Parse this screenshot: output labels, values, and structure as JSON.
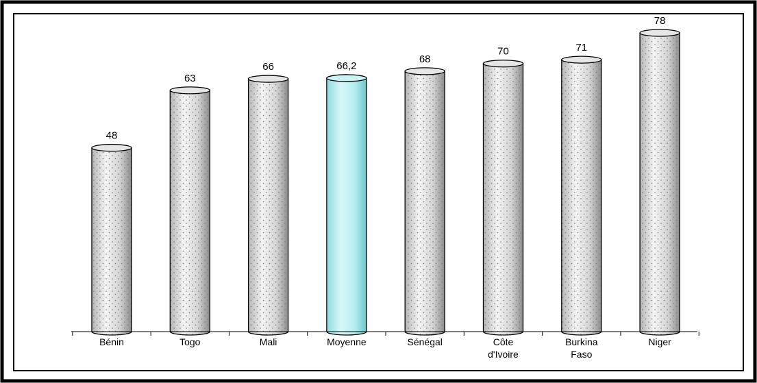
{
  "chart_data": {
    "type": "bar",
    "style": "3d-cylinder",
    "categories": [
      "Bénin",
      "Togo",
      "Mali",
      "Moyenne",
      "Sénégal",
      "Côte d'Ivoire",
      "Burkina Faso",
      "Niger"
    ],
    "category_lines": [
      [
        "Bénin"
      ],
      [
        "Togo"
      ],
      [
        "Mali"
      ],
      [
        "Moyenne"
      ],
      [
        "Sénégal"
      ],
      [
        "Côte",
        "d'Ivoire"
      ],
      [
        "Burkina",
        "Faso"
      ],
      [
        "Niger"
      ]
    ],
    "values": [
      48,
      63,
      66,
      66.2,
      68,
      70,
      71,
      78
    ],
    "value_labels": [
      "48",
      "63",
      "66",
      "66,2",
      "68",
      "70",
      "71",
      "78"
    ],
    "highlight_index": 3,
    "ylim": [
      0,
      78
    ],
    "grid": false,
    "legend": "none",
    "colors": {
      "bar_fill": "#d9d9d9",
      "bar_dots": "#8a8a8a",
      "highlight_fill": "#b8eef0",
      "outline": "#000000",
      "frame": "#000000"
    }
  }
}
